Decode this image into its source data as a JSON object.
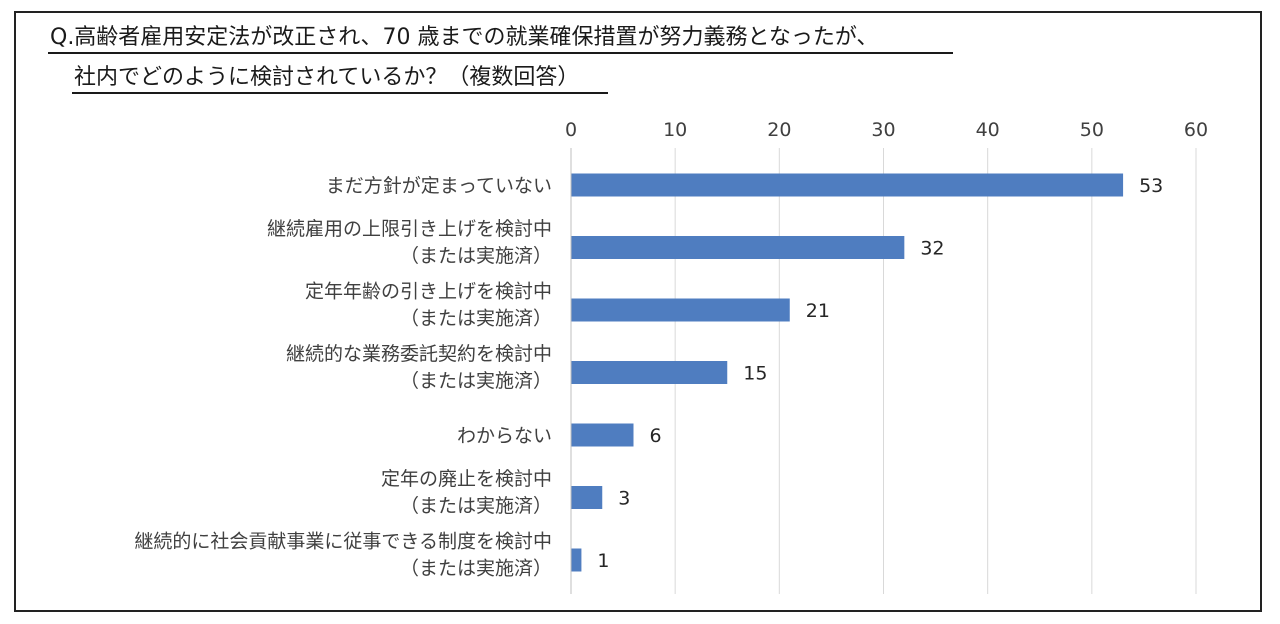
{
  "title_lines": [
    "Q.高齢者雇用安定法が改正され、70 歳までの就業確保措置が努力義務となったが、",
    "社内でどのように検討されているか？（複数回答）"
  ],
  "chart_data": {
    "type": "bar",
    "orientation": "horizontal",
    "categories": [
      [
        "まだ方針が定まっていない"
      ],
      [
        "継続雇用の上限引き上げを検討中",
        "（または実施済）"
      ],
      [
        "定年年齢の引き上げを検討中",
        "（または実施済）"
      ],
      [
        "継続的な業務委託契約を検討中",
        "（または実施済）"
      ],
      [
        "わからない"
      ],
      [
        "定年の廃止を検討中",
        "（または実施済）"
      ],
      [
        "継続的に社会貢献事業に従事できる制度を検討中",
        "（または実施済）"
      ]
    ],
    "values": [
      53,
      32,
      21,
      15,
      6,
      3,
      1
    ],
    "xlim": [
      0,
      60
    ],
    "xticks": [
      "0",
      "10",
      "20",
      "30",
      "40",
      "50",
      "60"
    ],
    "axis_position": "top",
    "grid": true,
    "data_labels": true,
    "bar_color": "#4f7dc0",
    "grid_color": "#d9d9d9",
    "text_color": "#404040"
  }
}
